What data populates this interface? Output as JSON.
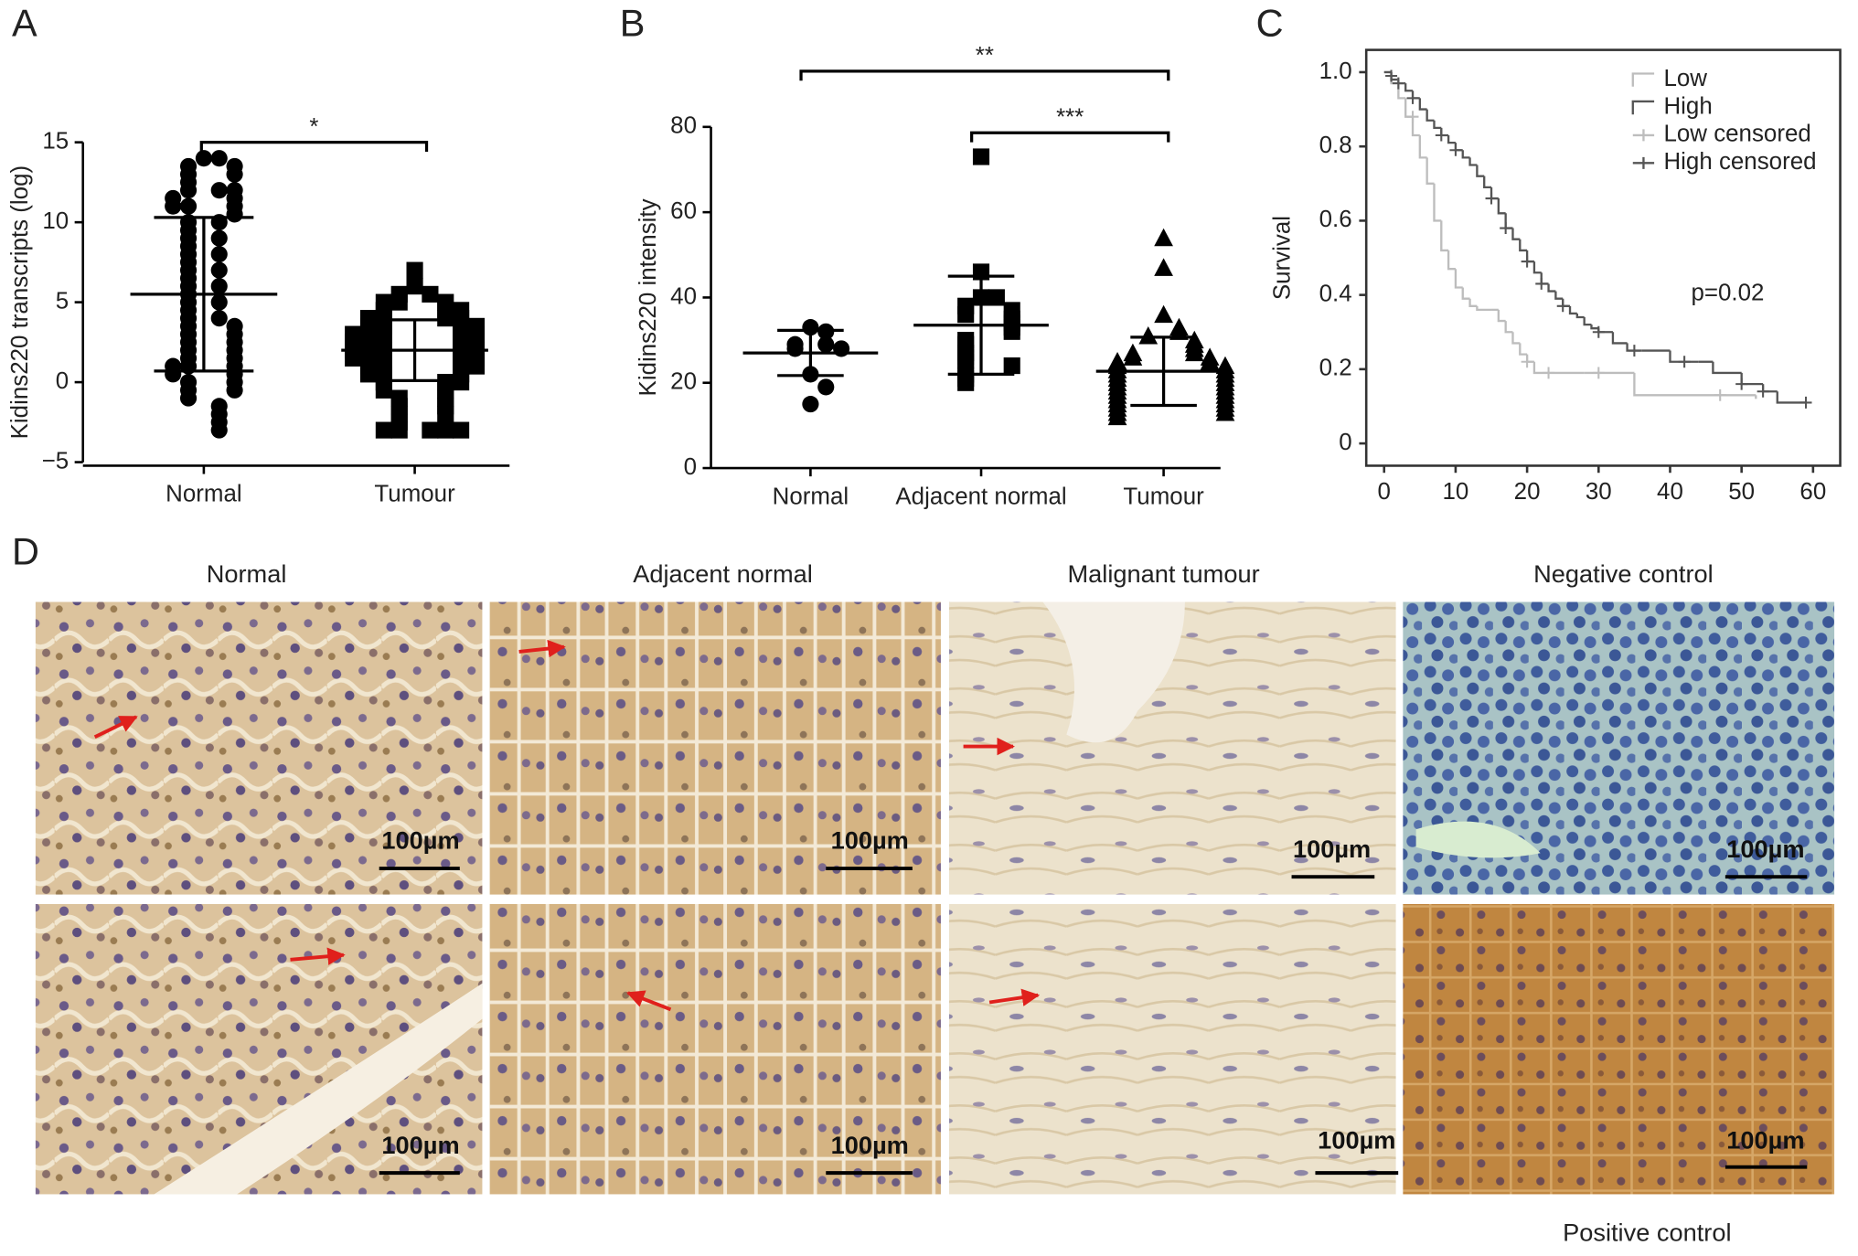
{
  "chart_data": [
    {
      "panel": "A",
      "type": "dot_plot",
      "y_label": "Kidins220 transcripts (log)",
      "color": "#000000",
      "categories": [
        "Normal",
        "Tumour"
      ],
      "groups": [
        {
          "marker": "circle",
          "mean": 5.5,
          "sd": 4.8,
          "values": [
            14,
            14,
            13.5,
            13.5,
            13,
            13,
            12.5,
            12,
            12,
            12,
            11.5,
            11.5,
            11,
            11,
            11,
            10.5,
            10,
            10,
            9.5,
            9,
            9,
            8.5,
            8,
            8,
            7.5,
            7,
            7,
            6.5,
            6,
            6,
            5.5,
            5,
            5,
            4.5,
            4,
            4,
            3.5,
            3.5,
            3,
            3,
            2.5,
            2.5,
            2,
            2,
            1.5,
            1.5,
            1,
            1,
            1,
            0.5,
            0.5,
            0,
            0,
            -0.5,
            -0.5,
            -1,
            -1.5,
            -2,
            -2.5,
            -3
          ]
        },
        {
          "marker": "square",
          "mean": 2.0,
          "sd": 1.9,
          "values": [
            7,
            6,
            5.5,
            5.5,
            5,
            5,
            5,
            4.5,
            4.5,
            4.5,
            4,
            4,
            4,
            4,
            3.5,
            3.5,
            3.5,
            3.5,
            3,
            3,
            3,
            3,
            3,
            2.5,
            2.5,
            2.5,
            2.5,
            2,
            2,
            2,
            2,
            2,
            1.5,
            1.5,
            1.5,
            1.5,
            1,
            1,
            1,
            1,
            0.5,
            0.5,
            0.5,
            0,
            0,
            0,
            -0.5,
            -0.5,
            -1,
            -1,
            -1.5,
            -1.5,
            -2,
            -2,
            -2.5,
            -3,
            -3,
            -3,
            -3,
            -3
          ]
        }
      ],
      "ylim": [
        -5,
        15
      ],
      "yticks": [
        {
          "value": -5,
          "label": "−5"
        },
        0,
        5,
        10,
        15
      ],
      "significance": [
        {
          "label": "*",
          "between": [
            0,
            1
          ]
        }
      ]
    },
    {
      "panel": "B",
      "type": "dot_plot",
      "y_label": "Kidins220 intensity",
      "color": "#000000",
      "categories": [
        "Normal",
        "Adjacent normal",
        "Tumour"
      ],
      "groups": [
        {
          "marker": "circle",
          "mean": 27,
          "sd": 5.3,
          "values": [
            33,
            32,
            29,
            29,
            28,
            28,
            22,
            19,
            15
          ]
        },
        {
          "marker": "square",
          "mean": 33.5,
          "sd": 11.5,
          "values": [
            73,
            46,
            40,
            40,
            38,
            37,
            36,
            35,
            34,
            33,
            32,
            30,
            29,
            27,
            26,
            25,
            24,
            22,
            21,
            20
          ]
        },
        {
          "marker": "triangle",
          "mean": 22.7,
          "sd": 8,
          "values": [
            54,
            47,
            36,
            33,
            32,
            31,
            30,
            29,
            28,
            27,
            27,
            26,
            26,
            25,
            25,
            24,
            24,
            23,
            23,
            22,
            22,
            21,
            21,
            20,
            20,
            19,
            19,
            18,
            18,
            17,
            17,
            16,
            16,
            15,
            15,
            14,
            14,
            13,
            13,
            12
          ]
        }
      ],
      "ylim": [
        0,
        80
      ],
      "yticks": [
        0,
        20,
        40,
        60,
        80
      ],
      "significance": [
        {
          "label": "**",
          "between": [
            0,
            2
          ]
        },
        {
          "label": "***",
          "between": [
            1,
            2
          ]
        }
      ]
    },
    {
      "panel": "C",
      "type": "survival",
      "y_label": "Survival",
      "annotation": "p=0.02",
      "series": [
        {
          "name": "Low",
          "color": "#bdbdbd",
          "marker": "step",
          "x": [
            0,
            1,
            2,
            3,
            4,
            5,
            6,
            7,
            8,
            9,
            10,
            11,
            12,
            13,
            15,
            16,
            17,
            18,
            19,
            20,
            21,
            28,
            35,
            47,
            52
          ],
          "values": [
            1.0,
            0.97,
            0.93,
            0.88,
            0.83,
            0.77,
            0.7,
            0.6,
            0.52,
            0.47,
            0.42,
            0.39,
            0.37,
            0.36,
            0.36,
            0.33,
            0.3,
            0.27,
            0.24,
            0.22,
            0.19,
            0.19,
            0.13,
            0.13,
            0.12
          ]
        },
        {
          "name": "High",
          "color": "#555555",
          "marker": "step",
          "x": [
            0,
            1,
            2,
            3,
            4,
            5,
            6,
            7,
            8,
            9,
            10,
            11,
            12,
            13,
            14,
            15,
            16,
            17,
            18,
            19,
            20,
            21,
            22,
            23,
            24,
            25,
            26,
            27,
            28,
            29,
            30,
            32,
            34,
            36,
            40,
            44,
            46,
            50,
            53,
            55,
            59
          ],
          "values": [
            1.0,
            0.98,
            0.97,
            0.95,
            0.93,
            0.9,
            0.87,
            0.85,
            0.83,
            0.81,
            0.79,
            0.77,
            0.75,
            0.72,
            0.69,
            0.66,
            0.62,
            0.58,
            0.55,
            0.52,
            0.49,
            0.46,
            0.43,
            0.41,
            0.39,
            0.37,
            0.35,
            0.34,
            0.32,
            0.31,
            0.3,
            0.27,
            0.25,
            0.25,
            0.22,
            0.22,
            0.19,
            0.16,
            0.14,
            0.11,
            0.11
          ]
        },
        {
          "name": "Low censored",
          "color": "#bdbdbd",
          "marker": "plus",
          "x": [
            2,
            4,
            20,
            23,
            30,
            47
          ],
          "values": [
            0.97,
            0.88,
            0.22,
            0.19,
            0.19,
            0.13
          ]
        },
        {
          "name": "High censored",
          "color": "#555555",
          "marker": "plus",
          "x": [
            1,
            2,
            4,
            8,
            10,
            15,
            17,
            20,
            22,
            25,
            30,
            35,
            42,
            50,
            53,
            59
          ],
          "values": [
            0.99,
            0.97,
            0.93,
            0.83,
            0.79,
            0.66,
            0.58,
            0.49,
            0.43,
            0.37,
            0.3,
            0.25,
            0.22,
            0.16,
            0.14,
            0.11
          ]
        }
      ],
      "xlim": [
        -2.5,
        63.8
      ],
      "xticks": [
        0,
        10,
        20,
        30,
        40,
        50,
        60
      ],
      "ylim": [
        -0.06,
        1.06
      ],
      "yticks": [
        0,
        0.2,
        0.4,
        0.6,
        0.8,
        {
          "value": 1,
          "label": "1.0"
        }
      ],
      "legend": "upper right"
    }
  ],
  "micrographs": {
    "panel": "D",
    "columns": [
      "Normal",
      "Adjacent normal",
      "Malignant tumour",
      "Negative control"
    ],
    "scale_bar": "100µm",
    "caption": "Positive control"
  }
}
